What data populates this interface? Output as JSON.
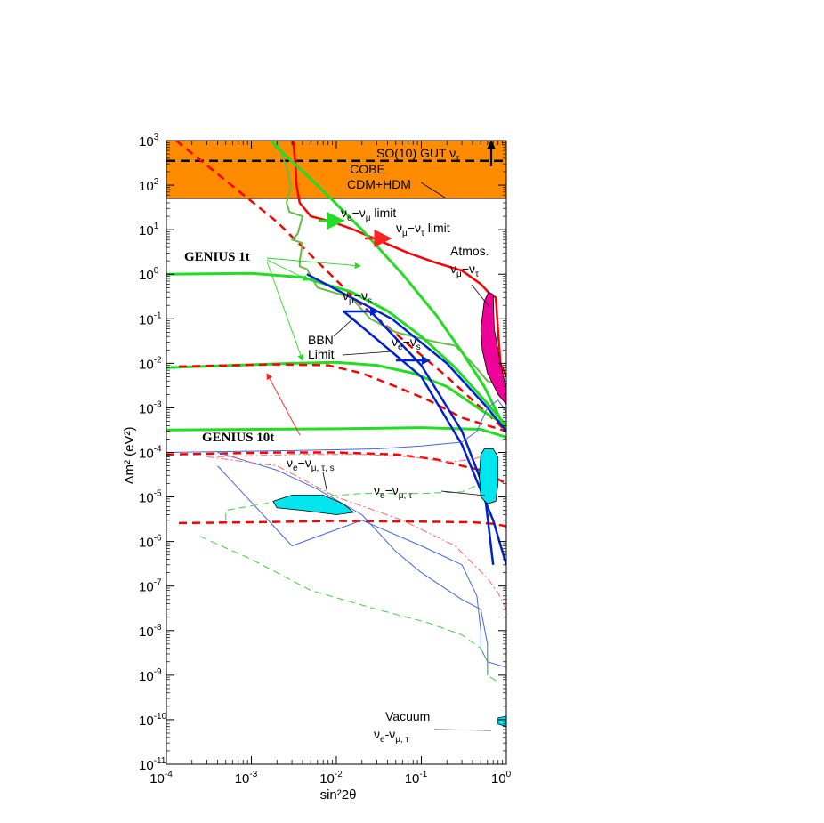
{
  "chart_data": {
    "type": "line",
    "x_scale": "log",
    "y_scale": "log",
    "xlabel": "sin²2θ",
    "ylabel": "Δm² (eV²)",
    "xlim": [
      0.0001,
      1
    ],
    "ylim": [
      1e-11,
      1000
    ],
    "x_ticks": [
      {
        "base": "10",
        "exp": "-4"
      },
      {
        "base": "10",
        "exp": "-3"
      },
      {
        "base": "10",
        "exp": "-2"
      },
      {
        "base": "10",
        "exp": "-1"
      },
      {
        "base": "10",
        "exp": "0"
      }
    ],
    "y_ticks": [
      {
        "base": "10",
        "exp": "3"
      },
      {
        "base": "10",
        "exp": "2"
      },
      {
        "base": "10",
        "exp": "1"
      },
      {
        "base": "10",
        "exp": "0"
      },
      {
        "base": "10",
        "exp": "-1"
      },
      {
        "base": "10",
        "exp": "-2"
      },
      {
        "base": "10",
        "exp": "-3"
      },
      {
        "base": "10",
        "exp": "-4"
      },
      {
        "base": "10",
        "exp": "-5"
      },
      {
        "base": "10",
        "exp": "-6"
      },
      {
        "base": "10",
        "exp": "-7"
      },
      {
        "base": "10",
        "exp": "-8"
      },
      {
        "base": "10",
        "exp": "-9"
      },
      {
        "base": "10",
        "exp": "-10"
      },
      {
        "base": "10",
        "exp": "-11"
      }
    ],
    "band": {
      "ymin": 50,
      "ymax": 1000,
      "color": "#ff8c00"
    },
    "annotations": {
      "so10": "SO(10) GUT ν",
      "so10_sub": "τ",
      "cobe": "COBE",
      "cdm": "CDM+HDM",
      "emu": "ν",
      "emu_sub": "e",
      "emu_mid": "−ν",
      "emu_sub2": "μ",
      "emu_tail": " limit",
      "mutau": "ν",
      "mutau_sub": "μ",
      "mutau_mid": "−ν",
      "mutau_sub2": "τ",
      "mutau_tail": " limit",
      "atmos": "Atmos.",
      "atmos2": "ν",
      "atmos2_sub": "μ",
      "atmos2_mid": "−ν",
      "atmos2_sub2": "τ",
      "genius1": "GENIUS 1t",
      "genius10": "GENIUS 10t",
      "mus": "ν",
      "mus_sub": "μ",
      "mus_mid": "−ν",
      "mus_sub2": "s",
      "bbn1": "BBN",
      "bbn2": "Limit",
      "es": "ν",
      "es_sub": "e",
      "es_mid": "−ν",
      "es_sub2": "s",
      "emts": "ν",
      "emts_sub": "e",
      "emts_mid": "−ν",
      "emts_sub2": "μ, τ, s",
      "emt": "ν",
      "emt_sub": "e",
      "emt_mid": "−ν",
      "emt_sub2": "μ, τ",
      "vac1": "Vacuum",
      "vac2": "ν",
      "vac2_sub": "e",
      "vac2_mid": "-ν",
      "vac2_sub2": "μ, τ"
    },
    "series": [
      {
        "color": "#000000",
        "dash": "10,6",
        "width": 2.5,
        "points": [
          [
            0.0001,
            350
          ],
          [
            1,
            350
          ]
        ]
      },
      {
        "color": "#ff0000",
        "dash": "9,6",
        "width": 2.5,
        "points": [
          [
            0.00013,
            1000
          ],
          [
            0.002,
            15
          ],
          [
            0.02,
            0.2
          ],
          [
            0.2,
            0.005
          ],
          [
            1,
            0.0003
          ]
        ]
      },
      {
        "color": "#ff0000",
        "dash": "",
        "width": 2.5,
        "points": [
          [
            0.0031,
            1000
          ],
          [
            0.0033,
            300
          ],
          [
            0.0034,
            100
          ],
          [
            0.0037,
            40
          ],
          [
            0.005,
            20
          ],
          [
            0.009,
            15
          ],
          [
            0.016,
            10
          ],
          [
            0.03,
            6
          ],
          [
            0.07,
            3
          ],
          [
            0.15,
            1.8
          ],
          [
            0.3,
            1.2
          ],
          [
            0.5,
            0.6
          ],
          [
            0.65,
            0.35
          ],
          [
            0.75,
            0.3
          ],
          [
            0.85,
            0.01
          ],
          [
            1,
            0.005
          ]
        ]
      },
      {
        "color": "#66bb44",
        "dash": "",
        "width": 2,
        "points": [
          [
            0.002,
            1000
          ],
          [
            0.0027,
            200
          ],
          [
            0.0029,
            100
          ],
          [
            0.0026,
            40
          ],
          [
            0.0028,
            25
          ],
          [
            0.004,
            20
          ],
          [
            0.0035,
            8
          ],
          [
            0.003,
            6
          ],
          [
            0.004,
            5
          ],
          [
            0.0037,
            2
          ],
          [
            0.0037,
            1.5
          ],
          [
            0.0045,
            1.3
          ],
          [
            0.006,
            0.5
          ],
          [
            0.015,
            0.3
          ],
          [
            0.025,
            0.1
          ],
          [
            0.05,
            0.05
          ],
          [
            0.15,
            0.03
          ],
          [
            0.25,
            0.025
          ],
          [
            0.4,
            0.01
          ],
          [
            0.6,
            0.004
          ],
          [
            1,
            0.003
          ]
        ]
      },
      {
        "color": "#22dd22",
        "dash": "",
        "width": 3,
        "points": [
          [
            0.0017,
            1000
          ],
          [
            0.002,
            700
          ],
          [
            0.006,
            100
          ],
          [
            0.02,
            10
          ],
          [
            0.06,
            1
          ],
          [
            0.15,
            0.12
          ],
          [
            0.3,
            0.018
          ],
          [
            0.55,
            0.003
          ],
          [
            1,
            0.0003
          ]
        ]
      },
      {
        "color": "#22dd22",
        "dash": "",
        "width": 3,
        "points": [
          [
            0.0001,
            1
          ],
          [
            0.001,
            1.05
          ],
          [
            0.004,
            0.85
          ],
          [
            0.015,
            0.4
          ],
          [
            0.04,
            0.15
          ],
          [
            0.1,
            0.04
          ],
          [
            0.25,
            0.008
          ],
          [
            0.55,
            0.0015
          ],
          [
            1,
            0.0004
          ]
        ]
      },
      {
        "color": "#22dd22",
        "dash": "",
        "width": 3,
        "points": [
          [
            0.0001,
            0.008
          ],
          [
            0.003,
            0.01
          ],
          [
            0.01,
            0.0105
          ],
          [
            0.03,
            0.009
          ],
          [
            0.08,
            0.006
          ],
          [
            0.2,
            0.003
          ],
          [
            0.5,
            0.0009
          ],
          [
            1,
            0.0004
          ]
        ]
      },
      {
        "color": "#22dd22",
        "dash": "",
        "width": 3,
        "points": [
          [
            0.0001,
            0.00032
          ],
          [
            0.01,
            0.00034
          ],
          [
            0.1,
            0.00036
          ],
          [
            0.5,
            0.00033
          ],
          [
            1,
            0.00022
          ]
        ]
      },
      {
        "color": "#ff0000",
        "dash": "9,6",
        "width": 2.5,
        "points": [
          [
            0.00014,
            0.0085
          ],
          [
            0.002,
            0.0095
          ],
          [
            0.008,
            0.009
          ],
          [
            0.02,
            0.006
          ],
          [
            0.05,
            0.003
          ],
          [
            0.12,
            0.0015
          ],
          [
            0.3,
            0.0006
          ],
          [
            1,
            0.0003
          ]
        ]
      },
      {
        "color": "#ff0000",
        "dash": "9,6",
        "width": 2.5,
        "points": [
          [
            0.0001,
            9e-05
          ],
          [
            0.002,
            0.0001
          ],
          [
            0.01,
            0.0001
          ],
          [
            0.05,
            9e-05
          ],
          [
            0.15,
            7e-05
          ],
          [
            0.3,
            5e-05
          ],
          [
            0.5,
            4e-05
          ],
          [
            0.8,
            2.5e-05
          ],
          [
            1,
            2e-05
          ]
        ]
      },
      {
        "color": "#ff0000",
        "dash": "9,6",
        "width": 2.5,
        "points": [
          [
            0.00014,
            2.6e-06
          ],
          [
            0.001,
            2.7e-06
          ],
          [
            0.01,
            2.9e-06
          ],
          [
            0.1,
            2.8e-06
          ],
          [
            0.4,
            2.7e-06
          ],
          [
            0.7,
            2.5e-06
          ],
          [
            1,
            2.2e-06
          ]
        ]
      },
      {
        "color": "#0022cc",
        "dash": "",
        "width": 2.5,
        "points": [
          [
            0.0045,
            1
          ],
          [
            0.045,
            0.1
          ],
          [
            0.2,
            0.01
          ],
          [
            0.6,
            0.001
          ],
          [
            1,
            0.0003
          ]
        ]
      },
      {
        "color": "#0022cc",
        "dash": "",
        "width": 2.5,
        "points": [
          [
            0.012,
            0.15
          ],
          [
            0.1,
            0.005
          ],
          [
            0.3,
            0.00015
          ],
          [
            0.7,
            3e-06
          ],
          [
            1,
            3e-07
          ]
        ]
      },
      {
        "color": "#0022cc",
        "dash": "",
        "width": 2.5,
        "points": [
          [
            0.025,
            0.15
          ],
          [
            0.1,
            0.009
          ],
          [
            0.3,
            0.0003
          ],
          [
            0.55,
            1.5e-05
          ],
          [
            0.7,
            3e-07
          ]
        ]
      },
      {
        "color": "#4466dd",
        "dash": "",
        "width": 1,
        "points": [
          [
            0.0001,
            0.0001
          ],
          [
            0.003,
            0.00011
          ],
          [
            0.03,
            0.00012
          ],
          [
            0.1,
            0.00014
          ],
          [
            0.3,
            0.00017
          ],
          [
            0.45,
            0.0003
          ],
          [
            0.6,
            0.001
          ],
          [
            0.8,
            0.0015
          ],
          [
            1,
            0.0008
          ]
        ]
      },
      {
        "color": "#4466dd",
        "dash": "",
        "width": 1,
        "points": [
          [
            0.0004,
            5e-05
          ],
          [
            0.003,
            8e-07
          ],
          [
            0.02,
            3e-06
          ],
          [
            0.1,
            8e-07
          ],
          [
            0.3,
            3e-07
          ],
          [
            0.45,
            6e-08
          ],
          [
            0.5,
            1e-08
          ],
          [
            0.5,
            4e-09
          ],
          [
            0.6,
            2e-09
          ],
          [
            1,
            1.5e-09
          ]
        ]
      },
      {
        "color": "#4466dd",
        "dash": "",
        "width": 1,
        "points": [
          [
            0.0004,
            0.0001
          ],
          [
            0.002,
            4e-05
          ],
          [
            0.006,
            1.5e-05
          ],
          [
            0.02,
            4e-06
          ],
          [
            0.05,
            6e-07
          ],
          [
            0.1,
            2e-07
          ],
          [
            0.3,
            5e-08
          ],
          [
            0.5,
            3e-08
          ],
          [
            0.6,
            5e-09
          ],
          [
            0.6,
            1e-09
          ]
        ]
      },
      {
        "color": "#ff6666",
        "dash": "8,3,2,3",
        "width": 1,
        "points": [
          [
            0.0004,
            8e-05
          ],
          [
            0.003,
            9e-05
          ],
          [
            0.02,
            9e-05
          ],
          [
            0.08,
            8e-05
          ],
          [
            0.2,
            6e-05
          ],
          [
            0.4,
            7e-05
          ],
          [
            0.6,
            9e-05
          ],
          [
            0.9,
            0.0001
          ],
          [
            1,
            0.0001
          ]
        ]
      },
      {
        "color": "#ff6666",
        "dash": "8,3,2,3",
        "width": 1,
        "points": [
          [
            0.0003,
            8e-05
          ],
          [
            0.002,
            5e-05
          ],
          [
            0.01,
            1e-05
          ],
          [
            0.06,
            3e-06
          ],
          [
            0.25,
            8e-07
          ],
          [
            0.6,
            1.5e-07
          ],
          [
            0.8,
            7e-08
          ],
          [
            1,
            3e-08
          ]
        ]
      },
      {
        "color": "#44cc44",
        "dash": "8,5",
        "width": 1,
        "points": [
          [
            0.0005,
            3e-06
          ],
          [
            0.0005,
            5e-06
          ],
          [
            0.003,
            9e-06
          ],
          [
            0.02,
            1.2e-05
          ],
          [
            0.1,
            1.2e-05
          ],
          [
            0.3,
            1.3e-05
          ],
          [
            0.5,
            2e-05
          ],
          [
            0.6,
            4e-05
          ]
        ]
      },
      {
        "color": "#44cc44",
        "dash": "8,5",
        "width": 1,
        "points": [
          [
            0.00025,
            1.3e-06
          ],
          [
            0.001,
            4e-07
          ],
          [
            0.005,
            8e-08
          ],
          [
            0.03,
            3e-08
          ],
          [
            0.12,
            1.5e-08
          ],
          [
            0.3,
            8e-09
          ],
          [
            0.5,
            4e-09
          ],
          [
            0.6,
            2e-09
          ],
          [
            0.6,
            1e-09
          ],
          [
            0.8,
            7e-10
          ]
        ]
      }
    ],
    "regions": [
      {
        "color": "#ee0099",
        "points": [
          [
            0.55,
            0.25
          ],
          [
            0.62,
            0.4
          ],
          [
            0.7,
            0.35
          ],
          [
            0.72,
            0.06
          ],
          [
            0.85,
            0.01
          ],
          [
            0.95,
            0.004
          ],
          [
            1,
            0.003
          ],
          [
            1,
            0.0012
          ],
          [
            0.8,
            0.002
          ],
          [
            0.6,
            0.006
          ],
          [
            0.52,
            0.02
          ],
          [
            0.5,
            0.06
          ]
        ]
      },
      {
        "color": "#00e5ee",
        "points": [
          [
            0.5,
            9e-05
          ],
          [
            0.55,
            0.00012
          ],
          [
            0.7,
            0.00012
          ],
          [
            0.8,
            8e-05
          ],
          [
            0.8,
            2e-05
          ],
          [
            0.75,
            8e-06
          ],
          [
            0.6,
            7e-06
          ],
          [
            0.5,
            1e-05
          ],
          [
            0.48,
            3e-05
          ]
        ]
      },
      {
        "color": "#00e5ee",
        "points": [
          [
            0.0018,
            8e-06
          ],
          [
            0.003,
            1.1e-05
          ],
          [
            0.007,
            1.1e-05
          ],
          [
            0.012,
            7e-06
          ],
          [
            0.016,
            4.5e-06
          ],
          [
            0.01,
            4e-06
          ],
          [
            0.004,
            5e-06
          ],
          [
            0.002,
            5.7e-06
          ]
        ]
      },
      {
        "color": "#00e5ee",
        "points": [
          [
            0.8,
            8e-11
          ],
          [
            1,
            7e-11
          ],
          [
            1,
            1.2e-10
          ],
          [
            0.8,
            1.1e-10
          ]
        ]
      }
    ]
  }
}
